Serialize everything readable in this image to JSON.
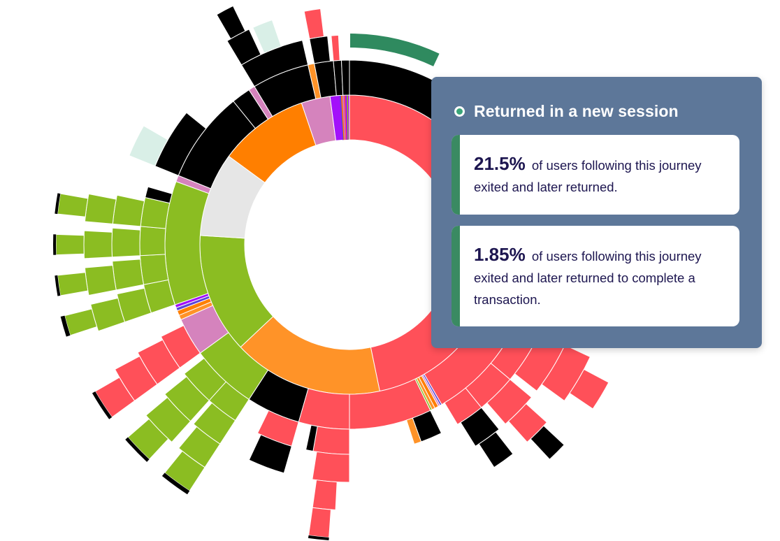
{
  "colors": {
    "green_arc": "#2f8a5f",
    "red": "#ff5059",
    "orange": "#ff9328",
    "dark_orange": "#ff7f00",
    "green": "#8bbd22",
    "gray": "#e6e6e6",
    "pink": "#d583bd",
    "purple": "#a311fa",
    "blue": "#5b44d9",
    "black": "#000000",
    "pale_green": "#d9efe7",
    "tooltip_bg": "#5d7799",
    "card_accent": "#3a8a62"
  },
  "chart_data": {
    "type": "sunburst",
    "inner_ring": [
      {
        "color": "red",
        "value": 36
      },
      {
        "color": "orange",
        "value": 12.5
      },
      {
        "color": "green",
        "value": 10
      },
      {
        "color": "gray",
        "value": 7
      },
      {
        "color": "dark_orange",
        "value": 7.5
      },
      {
        "color": "pink",
        "value": 2.4
      },
      {
        "color": "purple",
        "value": 1.6
      }
    ]
  },
  "tooltip": {
    "title": "Returned in a new session",
    "stats": [
      {
        "value": "21.5%",
        "text": "of users following this journey exited and later returned."
      },
      {
        "value": "1.85%",
        "text": "of users following this journey exited and later returned to complete a transaction."
      }
    ]
  }
}
